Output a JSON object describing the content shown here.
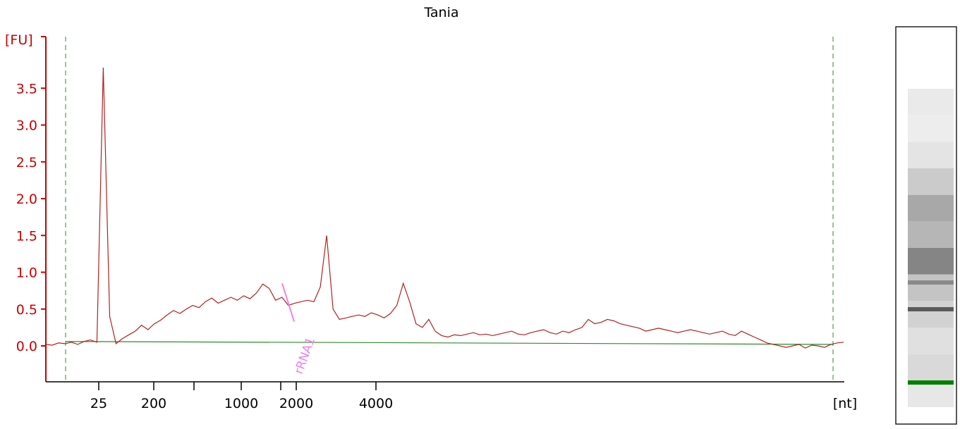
{
  "chart_data": {
    "type": "line",
    "title": "Tania",
    "ylabel": "[FU]",
    "xlabel": "[nt]",
    "ylim": [
      -0.45,
      4.15
    ],
    "y_ticks": [
      "0.0",
      "0.5",
      "1.0",
      "1.5",
      "2.0",
      "2.5",
      "3.0",
      "3.5"
    ],
    "x_ticks": [
      "25",
      "200",
      "1000",
      "2000",
      "4000"
    ],
    "x_ticks_unlabeled": 2,
    "annotations": [
      "rRNA1"
    ],
    "colors": {
      "trace": "#b22222",
      "baseline": "#2e8b2e",
      "axis": "#cc0000",
      "markers": "#2e8b2e",
      "annotation": "#ee82ee",
      "gel_band_marker": "#008000"
    },
    "series": [
      {
        "values": [
          0.02,
          0.01,
          0.04,
          0.03,
          0.05,
          0.02,
          0.06,
          0.08,
          0.05,
          3.78,
          0.4,
          0.03,
          0.1,
          0.15,
          0.2,
          0.28,
          0.22,
          0.3,
          0.35,
          0.42,
          0.48,
          0.44,
          0.5,
          0.55,
          0.52,
          0.6,
          0.65,
          0.58,
          0.62,
          0.66,
          0.62,
          0.68,
          0.64,
          0.72,
          0.84,
          0.78,
          0.62,
          0.66,
          0.55,
          0.58,
          0.6,
          0.62,
          0.6,
          0.8,
          1.5,
          0.5,
          0.36,
          0.38,
          0.4,
          0.42,
          0.4,
          0.45,
          0.42,
          0.38,
          0.44,
          0.55,
          0.85,
          0.6,
          0.3,
          0.25,
          0.36,
          0.2,
          0.14,
          0.12,
          0.15,
          0.14,
          0.16,
          0.18,
          0.15,
          0.16,
          0.14,
          0.16,
          0.18,
          0.2,
          0.16,
          0.15,
          0.18,
          0.2,
          0.22,
          0.18,
          0.16,
          0.2,
          0.18,
          0.22,
          0.25,
          0.36,
          0.3,
          0.32,
          0.36,
          0.34,
          0.3,
          0.28,
          0.26,
          0.24,
          0.2,
          0.22,
          0.24,
          0.22,
          0.2,
          0.18,
          0.2,
          0.22,
          0.2,
          0.18,
          0.16,
          0.18,
          0.2,
          0.16,
          0.14,
          0.2,
          0.16,
          0.12,
          0.08,
          0.04,
          0.02,
          0.0,
          -0.02,
          0.0,
          0.02,
          -0.03,
          0.01,
          0.0,
          -0.02,
          0.02,
          0.04,
          0.05
        ]
      }
    ],
    "baseline_values": [
      0.06,
      0.02
    ]
  },
  "gel": {
    "bands": [
      {
        "level": 0.08
      },
      {
        "level": 0.06
      },
      {
        "level": 0.12
      },
      {
        "level": 0.3
      },
      {
        "level": 0.55
      },
      {
        "level": 0.45
      },
      {
        "level": 0.8
      },
      {
        "level": 0.35
      },
      {
        "level": 0.25
      },
      {
        "level": 0.15
      },
      {
        "level": 0.2
      },
      {
        "level": 0.1
      }
    ]
  }
}
